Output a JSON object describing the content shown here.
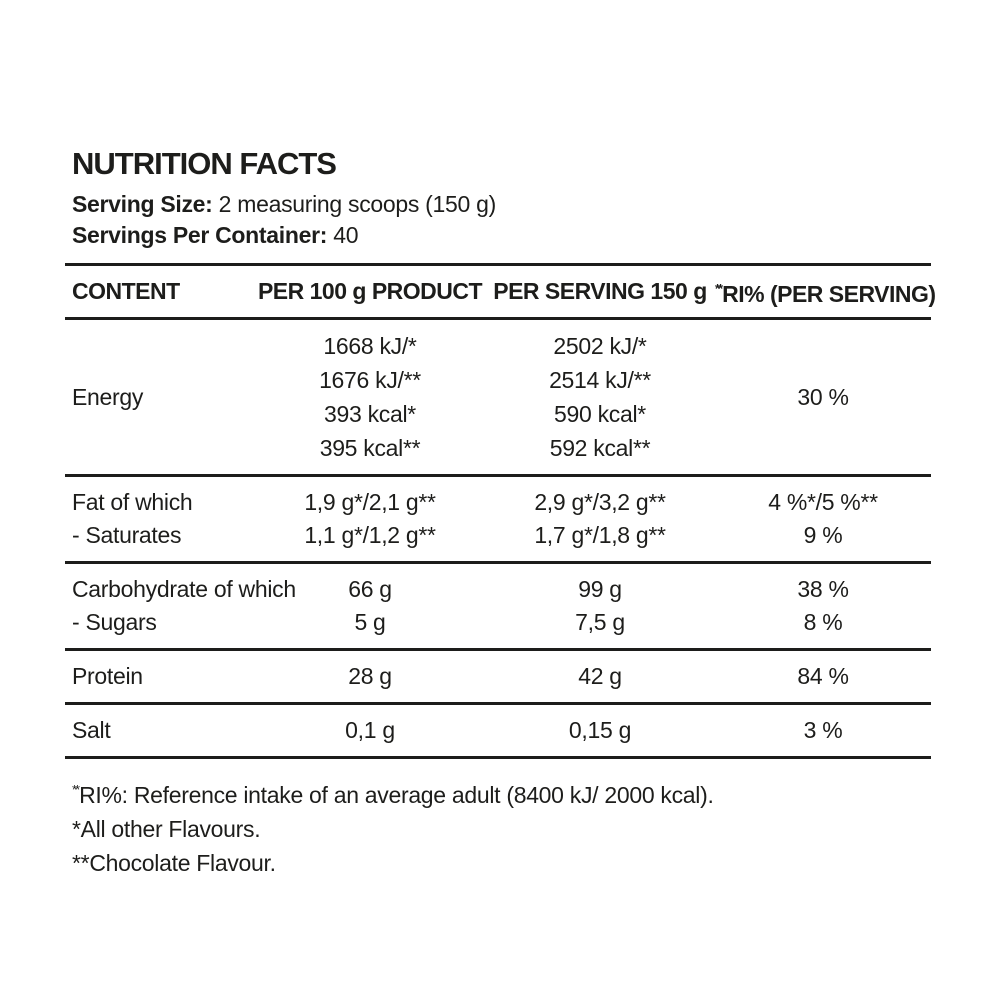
{
  "page": {
    "background_color": "#ffffff",
    "text_color": "#1d1d1b"
  },
  "header": {
    "title": "NUTRITION FACTS",
    "serving_size_label": "Serving Size:",
    "serving_size_value": "2 measuring scoops (150 g)",
    "servings_per_container_label": "Servings Per Container:",
    "servings_per_container_value": "40"
  },
  "table": {
    "columns": [
      "CONTENT",
      "PER 100 g PRODUCT",
      "PER SERVING 150 g"
    ],
    "ri_header": {
      "prefix": "**",
      "label": "RI% (PER SERVING)"
    },
    "rows": [
      {
        "label": [
          "Energy"
        ],
        "per100": [
          "1668 kJ/*",
          "1676 kJ/**",
          "393 kcal*",
          "395 kcal**"
        ],
        "serving": [
          "2502 kJ/*",
          "2514 kJ/**",
          "590 kcal*",
          "592 kcal**"
        ],
        "ri": [
          "30 %"
        ]
      },
      {
        "label": [
          "Fat of which",
          "- Saturates"
        ],
        "per100": [
          "1,9 g*/2,1 g**",
          "1,1 g*/1,2 g**"
        ],
        "serving": [
          "2,9 g*/3,2 g**",
          "1,7 g*/1,8 g**"
        ],
        "ri": [
          "4 %*/5 %**",
          "9 %"
        ]
      },
      {
        "label": [
          "Carbohydrate of which",
          "- Sugars"
        ],
        "per100": [
          "66 g",
          "5 g"
        ],
        "serving": [
          "99 g",
          "7,5 g"
        ],
        "ri": [
          "38 %",
          "8 %"
        ]
      },
      {
        "label": [
          "Protein"
        ],
        "per100": [
          "28 g"
        ],
        "serving": [
          "42 g"
        ],
        "ri": [
          "84 %"
        ]
      },
      {
        "label": [
          "Salt"
        ],
        "per100": [
          "0,1 g"
        ],
        "serving": [
          "0,15 g"
        ],
        "ri": [
          "3 %"
        ]
      }
    ]
  },
  "footnotes": [
    {
      "prefix": "**",
      "text": "RI%: Reference intake of an average adult (8400 kJ/ 2000 kcal)."
    },
    {
      "prefix": "*",
      "text": "All other Flavours."
    },
    {
      "prefix": "**",
      "text": "Chocolate Flavour."
    }
  ]
}
